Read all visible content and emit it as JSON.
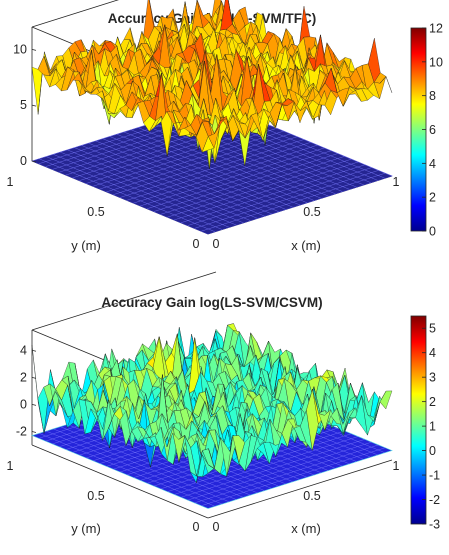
{
  "chart_data": [
    {
      "type": "surface",
      "title": "Accuracy Gain log(LS-SVM/TFC)",
      "xlabel": "x (m)",
      "ylabel": "y (m)",
      "xlim": [
        0,
        1
      ],
      "ylim": [
        0,
        1
      ],
      "zlim": [
        0,
        12
      ],
      "x_ticks": [
        "0",
        "0.5",
        "1"
      ],
      "y_ticks": [
        "0",
        "0.5",
        "1"
      ],
      "z_ticks": [
        "0",
        "5",
        "10"
      ],
      "colorbar": {
        "range": [
          0,
          12
        ],
        "ticks": [
          "0",
          "2",
          "4",
          "6",
          "8",
          "10",
          "12"
        ]
      },
      "colormap": "jet",
      "surface_mean": 8.2,
      "surface_noise_amplitude": 1.5,
      "floor_plane_z": 0
    },
    {
      "type": "surface",
      "title": "Accuracy Gain log(LS-SVM/CSVM)",
      "xlabel": "x (m)",
      "ylabel": "y (m)",
      "xlim": [
        0,
        1
      ],
      "ylim": [
        0,
        1
      ],
      "zlim": [
        -3,
        5.5
      ],
      "x_ticks": [
        "0",
        "0.5",
        "1"
      ],
      "y_ticks": [
        "0",
        "0.5",
        "1"
      ],
      "z_ticks": [
        "-2",
        "0",
        "2",
        "4"
      ],
      "colorbar": {
        "range": [
          -3,
          5.5
        ],
        "ticks": [
          "-3",
          "-2",
          "-1",
          "0",
          "1",
          "2",
          "3",
          "4",
          "5"
        ]
      },
      "colormap": "jet",
      "surface_mean": 0.8,
      "surface_noise_amplitude": 1.6,
      "floor_plane_z": -2.3
    }
  ]
}
